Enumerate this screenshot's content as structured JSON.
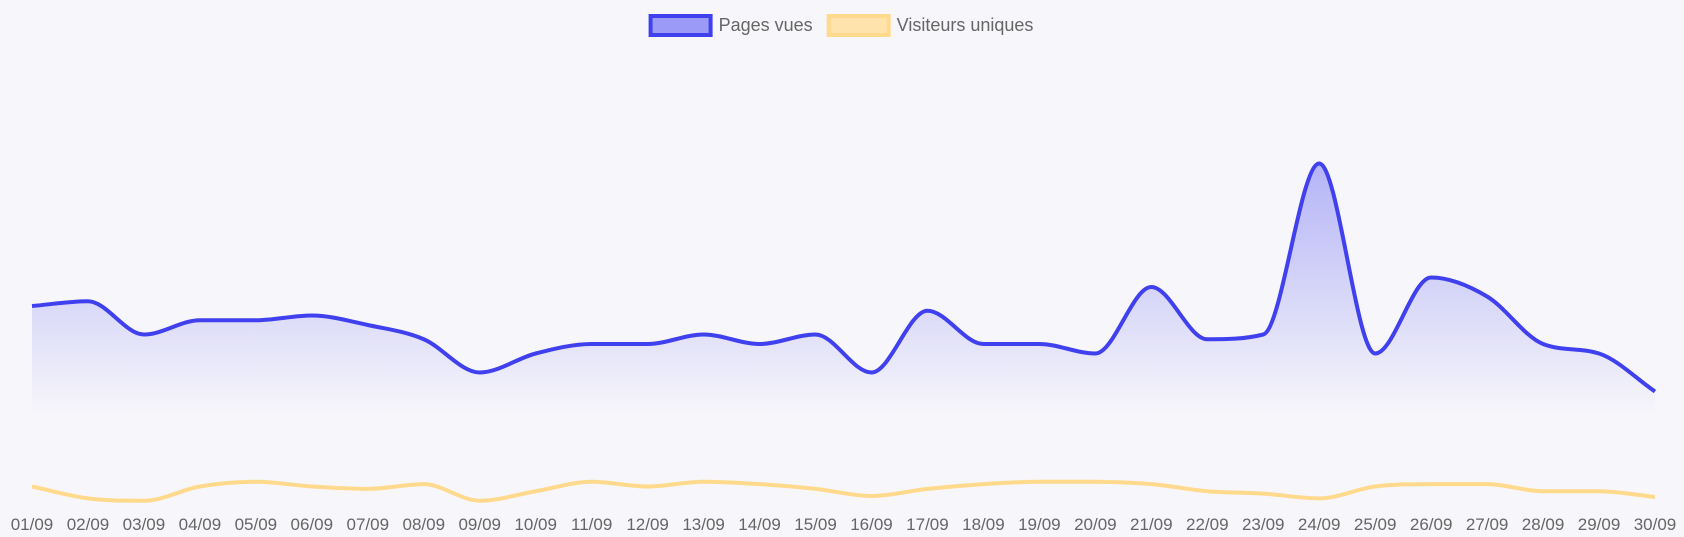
{
  "chart_data": {
    "type": "area",
    "title": "",
    "xlabel": "",
    "ylabel": "",
    "categories": [
      "01/09",
      "02/09",
      "03/09",
      "04/09",
      "05/09",
      "06/09",
      "07/09",
      "08/09",
      "09/09",
      "10/09",
      "11/09",
      "12/09",
      "13/09",
      "14/09",
      "15/09",
      "16/09",
      "17/09",
      "18/09",
      "19/09",
      "20/09",
      "21/09",
      "22/09",
      "23/09",
      "24/09",
      "25/09",
      "26/09",
      "27/09",
      "28/09",
      "29/09",
      "30/09"
    ],
    "ylim": [
      0,
      100
    ],
    "grid": false,
    "legend_position": "top-center",
    "series": [
      {
        "name": "Pages vues",
        "color": "#4040ee",
        "fill_top": "#b4b4f7",
        "legend_fill": "#9b9bf7",
        "values": [
          44,
          45,
          38,
          41,
          41,
          42,
          40,
          37,
          30,
          34,
          36,
          36,
          38,
          36,
          38,
          30,
          43,
          36,
          36,
          34,
          48,
          37,
          38,
          74,
          34,
          50,
          46,
          36,
          34,
          26
        ]
      },
      {
        "name": "Visiteurs uniques",
        "color": "#ffd98c",
        "legend_fill": "#ffe3ac",
        "values": [
          6,
          3.5,
          3,
          6,
          7,
          6,
          5.5,
          6.5,
          3,
          5,
          7,
          6,
          7,
          6.5,
          5.5,
          4,
          5.5,
          6.5,
          7,
          7,
          6.5,
          5,
          4.5,
          3.5,
          6,
          6.5,
          6.5,
          5,
          5,
          3.8
        ]
      }
    ]
  }
}
